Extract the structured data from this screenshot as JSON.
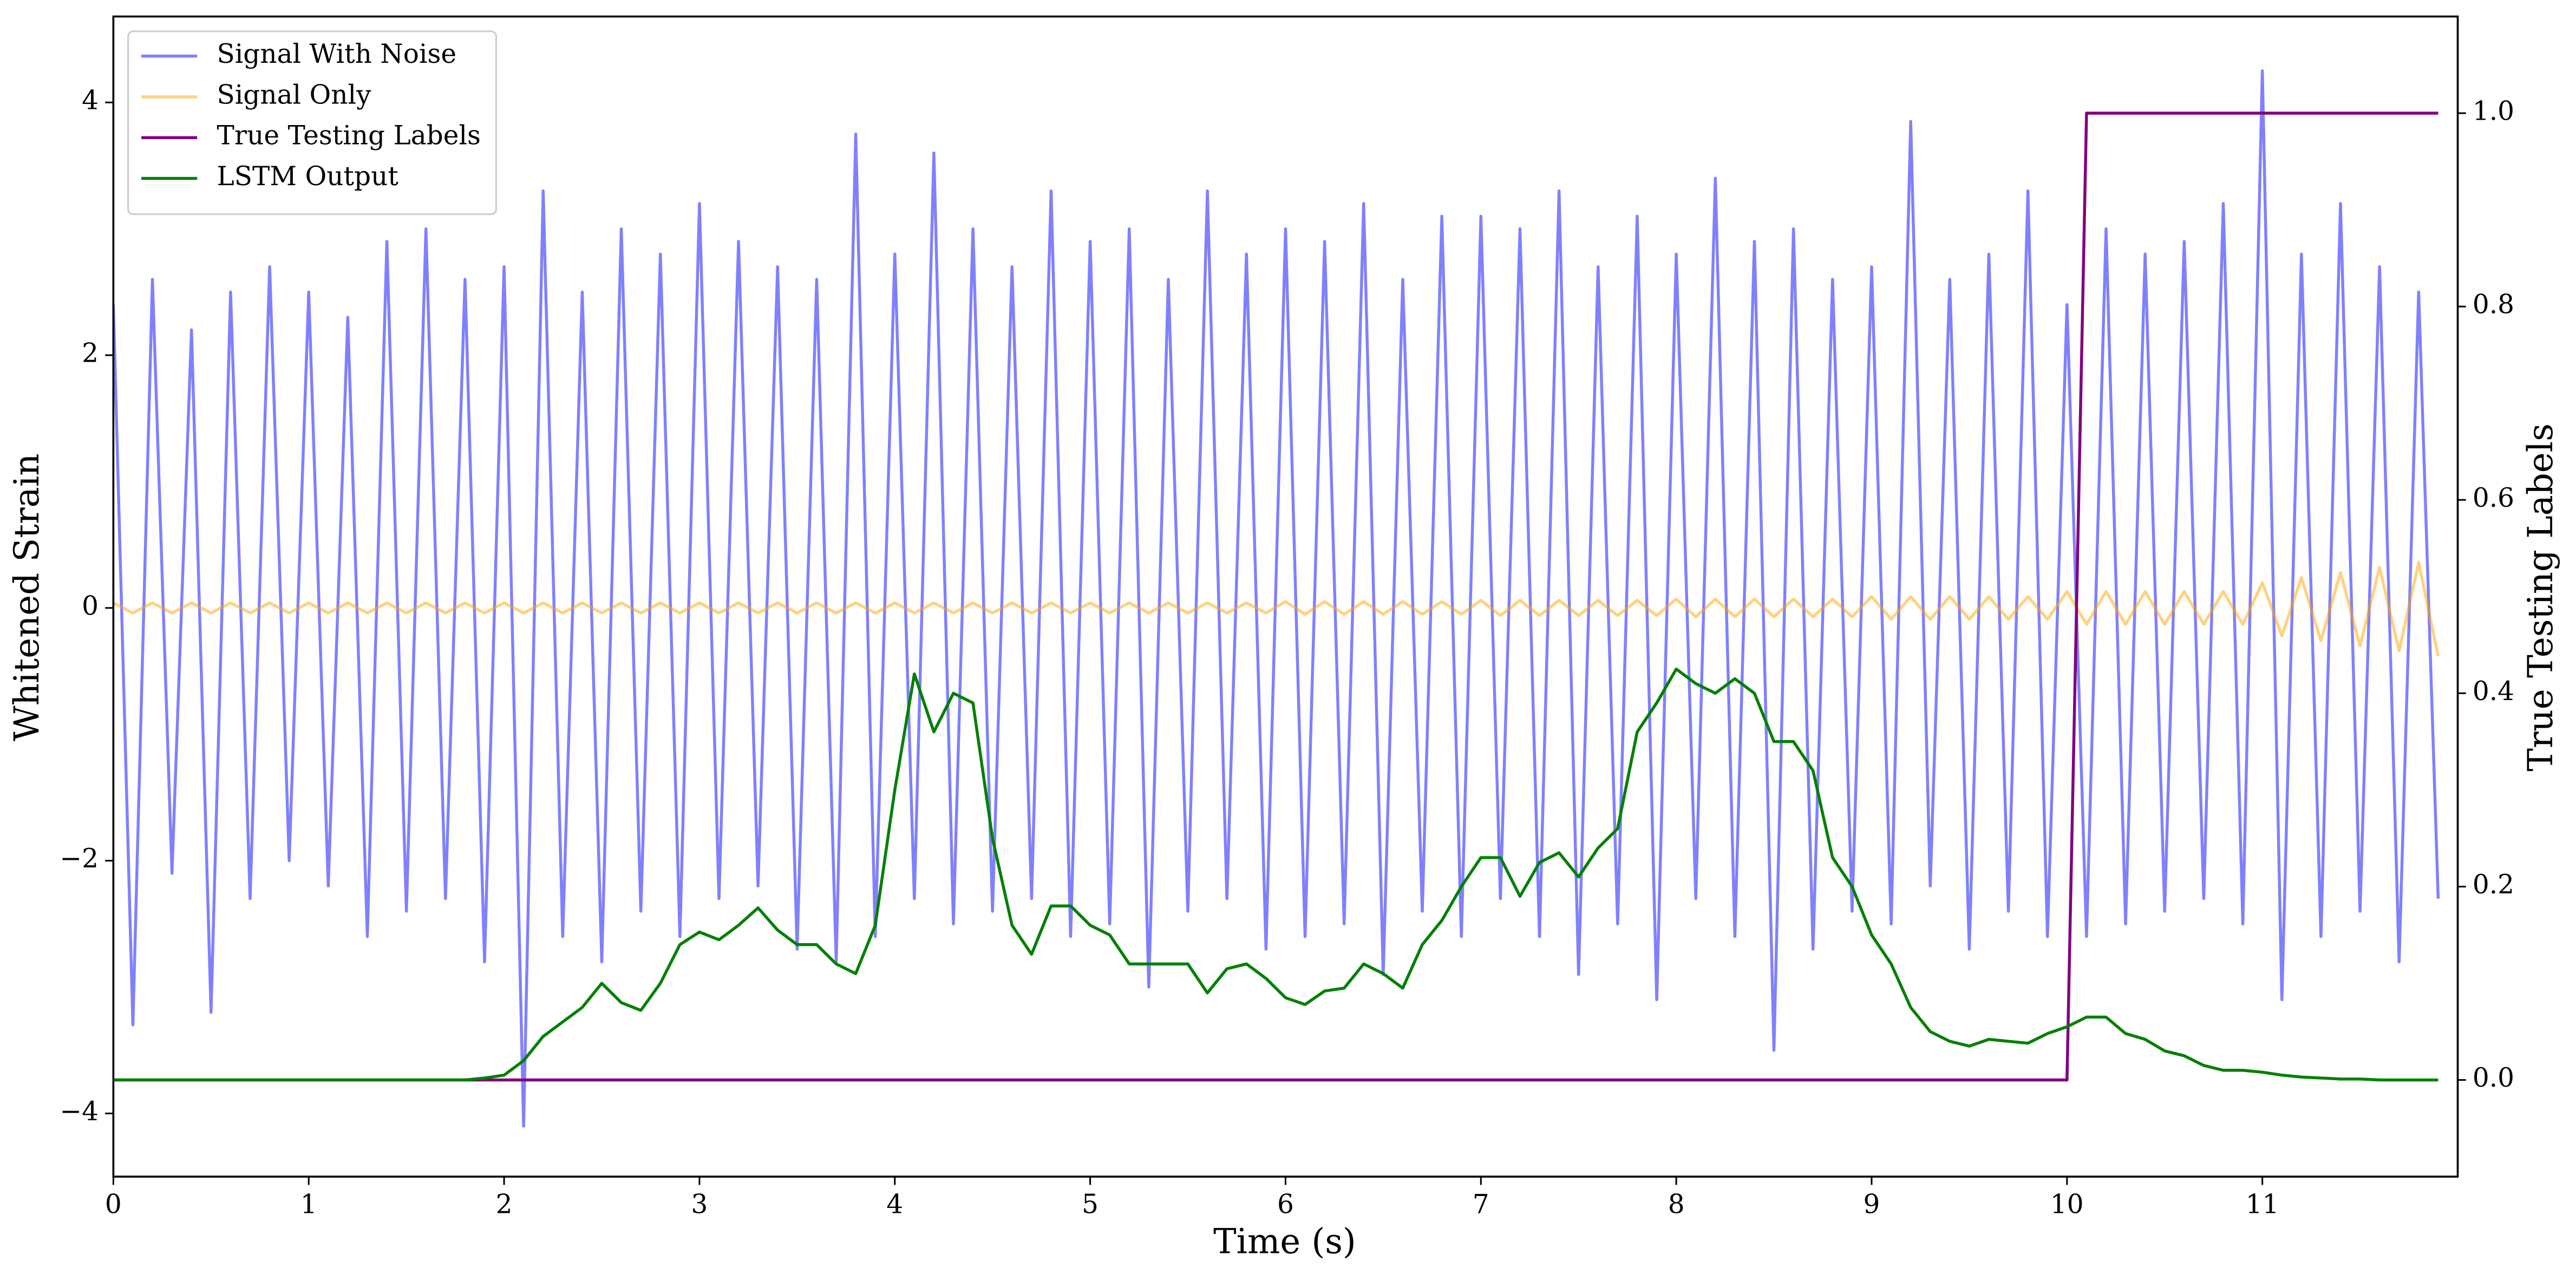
{
  "chart_data": {
    "type": "line",
    "xlabel": "Time (s)",
    "ylabel": "Whitened Strain",
    "y2label": "True Testing Labels",
    "x": [
      0,
      0.1,
      0.2,
      0.3,
      0.4,
      0.5,
      0.6,
      0.7,
      0.8,
      0.9,
      1,
      1.1,
      1.2,
      1.3,
      1.4,
      1.5,
      1.6,
      1.7,
      1.8,
      1.9,
      2,
      2.1,
      2.2,
      2.3,
      2.4,
      2.5,
      2.6,
      2.7,
      2.8,
      2.9,
      3,
      3.1,
      3.2,
      3.3,
      3.4,
      3.5,
      3.6,
      3.7,
      3.8,
      3.9,
      4,
      4.1,
      4.2,
      4.3,
      4.4,
      4.5,
      4.6,
      4.7,
      4.8,
      4.9,
      5,
      5.1,
      5.2,
      5.3,
      5.4,
      5.5,
      5.6,
      5.7,
      5.8,
      5.9,
      6,
      6.1,
      6.2,
      6.3,
      6.4,
      6.5,
      6.6,
      6.7,
      6.8,
      6.9,
      7,
      7.1,
      7.2,
      7.3,
      7.4,
      7.5,
      7.6,
      7.7,
      7.8,
      7.9,
      8,
      8.1,
      8.2,
      8.3,
      8.4,
      8.5,
      8.6,
      8.7,
      8.8,
      8.9,
      9,
      9.1,
      9.2,
      9.3,
      9.4,
      9.5,
      9.6,
      9.7,
      9.8,
      9.9,
      10,
      10.1,
      10.2,
      10.3,
      10.4,
      10.5,
      10.6,
      10.7,
      10.8,
      10.9,
      11,
      11.1,
      11.2,
      11.3,
      11.4,
      11.5,
      11.6,
      11.7,
      11.8,
      11.9
    ],
    "series": [
      {
        "name": "Signal With Noise",
        "color": "#8080ff",
        "alpha": 1,
        "axis": "y",
        "values": [
          2.4,
          -3.3,
          2.6,
          -2.1,
          2.2,
          -3.2,
          2.5,
          -2.3,
          2.7,
          -2.0,
          2.5,
          -2.2,
          2.3,
          -2.6,
          2.9,
          -2.4,
          3.0,
          -2.3,
          2.6,
          -2.8,
          2.7,
          -4.1,
          3.3,
          -2.6,
          2.5,
          -2.8,
          3.0,
          -2.4,
          2.8,
          -2.6,
          3.2,
          -2.3,
          2.9,
          -2.2,
          2.7,
          -2.7,
          2.6,
          -2.8,
          3.75,
          -2.6,
          2.8,
          -2.3,
          3.6,
          -2.5,
          3.0,
          -2.4,
          2.7,
          -2.3,
          3.3,
          -2.6,
          2.9,
          -2.5,
          3.0,
          -3.0,
          2.6,
          -2.4,
          3.3,
          -2.3,
          2.8,
          -2.7,
          3.0,
          -2.6,
          2.9,
          -2.5,
          3.2,
          -2.9,
          2.6,
          -2.4,
          3.1,
          -2.6,
          3.1,
          -2.3,
          3.0,
          -2.6,
          3.3,
          -2.9,
          2.7,
          -2.5,
          3.1,
          -3.1,
          2.8,
          -2.3,
          3.4,
          -2.6,
          2.9,
          -3.5,
          3.0,
          -2.7,
          2.6,
          -2.4,
          2.7,
          -2.5,
          3.85,
          -2.2,
          2.6,
          -2.7,
          2.8,
          -2.4,
          3.3,
          -2.6,
          2.4,
          -2.6,
          3.0,
          -2.5,
          2.8,
          -2.4,
          2.9,
          -2.3,
          3.2,
          -2.5,
          4.25,
          -3.1,
          2.8,
          -2.6,
          3.2,
          -2.4,
          2.7,
          -2.8,
          2.5,
          -2.3
        ]
      },
      {
        "name": "Signal Only",
        "color": "#ffa500",
        "alpha": 0.5,
        "axis": "y",
        "values": [
          0.04,
          -0.04,
          0.04,
          -0.04,
          0.04,
          -0.04,
          0.04,
          -0.04,
          0.04,
          -0.04,
          0.04,
          -0.04,
          0.04,
          -0.04,
          0.04,
          -0.04,
          0.04,
          -0.04,
          0.04,
          -0.04,
          0.04,
          -0.04,
          0.04,
          -0.04,
          0.04,
          -0.04,
          0.04,
          -0.04,
          0.04,
          -0.04,
          0.04,
          -0.04,
          0.04,
          -0.04,
          0.04,
          -0.04,
          0.04,
          -0.04,
          0.04,
          -0.04,
          0.04,
          -0.04,
          0.04,
          -0.04,
          0.04,
          -0.04,
          0.04,
          -0.04,
          0.04,
          -0.04,
          0.04,
          -0.04,
          0.04,
          -0.04,
          0.04,
          -0.04,
          0.04,
          -0.04,
          0.04,
          -0.04,
          0.05,
          -0.05,
          0.05,
          -0.05,
          0.05,
          -0.05,
          0.05,
          -0.05,
          0.05,
          -0.05,
          0.06,
          -0.06,
          0.06,
          -0.06,
          0.06,
          -0.06,
          0.06,
          -0.06,
          0.06,
          -0.06,
          0.07,
          -0.07,
          0.07,
          -0.07,
          0.07,
          -0.07,
          0.07,
          -0.07,
          0.07,
          -0.07,
          0.09,
          -0.09,
          0.09,
          -0.09,
          0.09,
          -0.09,
          0.09,
          -0.09,
          0.09,
          -0.09,
          0.13,
          -0.13,
          0.13,
          -0.13,
          0.13,
          -0.13,
          0.13,
          -0.13,
          0.13,
          -0.13,
          0.2,
          -0.22,
          0.24,
          -0.26,
          0.28,
          -0.3,
          0.32,
          -0.34,
          0.36,
          -0.38
        ]
      },
      {
        "name": "True Testing Labels",
        "color": "#800080",
        "alpha": 1,
        "axis": "y2",
        "values": [
          0,
          0,
          0,
          0,
          0,
          0,
          0,
          0,
          0,
          0,
          0,
          0,
          0,
          0,
          0,
          0,
          0,
          0,
          0,
          0,
          0,
          0,
          0,
          0,
          0,
          0,
          0,
          0,
          0,
          0,
          0,
          0,
          0,
          0,
          0,
          0,
          0,
          0,
          0,
          0,
          0,
          0,
          0,
          0,
          0,
          0,
          0,
          0,
          0,
          0,
          0,
          0,
          0,
          0,
          0,
          0,
          0,
          0,
          0,
          0,
          0,
          0,
          0,
          0,
          0,
          0,
          0,
          0,
          0,
          0,
          0,
          0,
          0,
          0,
          0,
          0,
          0,
          0,
          0,
          0,
          0,
          0,
          0,
          0,
          0,
          0,
          0,
          0,
          0,
          0,
          0,
          0,
          0,
          0,
          0,
          0,
          0,
          0,
          0,
          0,
          0,
          1,
          1,
          1,
          1,
          1,
          1,
          1,
          1,
          1,
          1,
          1,
          1,
          1,
          1,
          1,
          1,
          1,
          1,
          1
        ]
      },
      {
        "name": "LSTM Output",
        "color": "#008000",
        "alpha": 1,
        "axis": "y2",
        "values": [
          0,
          0,
          0,
          0,
          0,
          0,
          0,
          0,
          0,
          0,
          0,
          0,
          0,
          0,
          0,
          0,
          0,
          0,
          0,
          0.002,
          0.005,
          0.02,
          0.045,
          0.06,
          0.075,
          0.1,
          0.08,
          0.072,
          0.1,
          0.14,
          0.153,
          0.145,
          0.16,
          0.178,
          0.155,
          0.14,
          0.14,
          0.12,
          0.11,
          0.16,
          0.3,
          0.42,
          0.36,
          0.4,
          0.39,
          0.25,
          0.16,
          0.13,
          0.18,
          0.18,
          0.16,
          0.15,
          0.12,
          0.12,
          0.12,
          0.12,
          0.09,
          0.115,
          0.12,
          0.105,
          0.085,
          0.078,
          0.092,
          0.095,
          0.12,
          0.11,
          0.095,
          0.14,
          0.165,
          0.2,
          0.23,
          0.23,
          0.19,
          0.225,
          0.235,
          0.21,
          0.24,
          0.26,
          0.36,
          0.39,
          0.425,
          0.41,
          0.4,
          0.415,
          0.4,
          0.35,
          0.35,
          0.32,
          0.23,
          0.2,
          0.15,
          0.12,
          0.075,
          0.05,
          0.04,
          0.035,
          0.042,
          0.04,
          0.038,
          0.048,
          0.055,
          0.065,
          0.065,
          0.048,
          0.042,
          0.03,
          0.025,
          0.015,
          0.01,
          0.01,
          0.008,
          0.005,
          0.003,
          0.002,
          0.001,
          0.001,
          0,
          0,
          0,
          0
        ]
      }
    ],
    "xlim": [
      0,
      12
    ],
    "xticks": [
      0,
      1,
      2,
      3,
      4,
      5,
      6,
      7,
      8,
      9,
      10,
      11
    ],
    "ylim": [
      -4.5,
      4.68
    ],
    "yticks": [
      {
        "value": -4,
        "label": "−4"
      },
      {
        "value": -2,
        "label": "−2"
      },
      0,
      2,
      4
    ],
    "y2lim": [
      -0.1,
      1.1
    ],
    "y2ticks": [
      {
        "value": 0,
        "label": "0.0"
      },
      0.2,
      0.4,
      0.6,
      0.8,
      {
        "value": 1,
        "label": "1.0"
      }
    ],
    "legend": "upper left",
    "grid": false
  }
}
